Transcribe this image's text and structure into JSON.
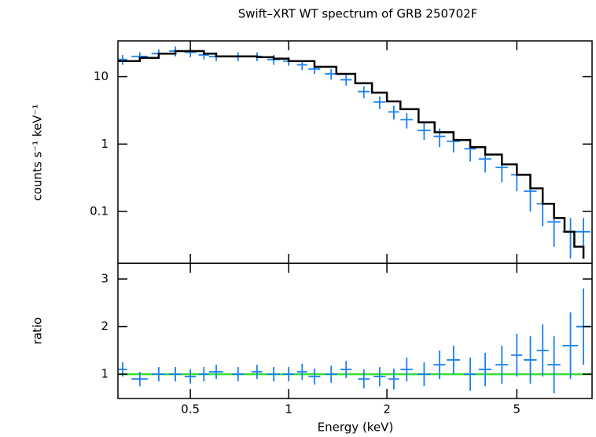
{
  "chart_data": [
    {
      "type": "errorbar",
      "title": "Swift–XRT WT spectrum of GRB 250702F",
      "ylabel": "counts s⁻¹ keV⁻¹",
      "xscale": "log",
      "yscale": "log",
      "xlim": [
        0.3,
        8.5
      ],
      "ylim": [
        0.017,
        34
      ],
      "yticks": [
        0.1,
        1,
        10
      ],
      "color": "#1a80f0",
      "x": [
        0.31,
        0.35,
        0.4,
        0.45,
        0.5,
        0.55,
        0.6,
        0.7,
        0.8,
        0.9,
        1.0,
        1.1,
        1.2,
        1.35,
        1.5,
        1.7,
        1.9,
        2.1,
        2.3,
        2.6,
        2.9,
        3.2,
        3.6,
        4.0,
        4.5,
        5.0,
        5.5,
        6.0,
        6.5,
        7.3,
        8.0
      ],
      "xerr": [
        0.01,
        0.02,
        0.02,
        0.02,
        0.02,
        0.02,
        0.03,
        0.03,
        0.03,
        0.04,
        0.04,
        0.04,
        0.05,
        0.06,
        0.06,
        0.07,
        0.08,
        0.08,
        0.1,
        0.12,
        0.12,
        0.15,
        0.15,
        0.18,
        0.2,
        0.2,
        0.25,
        0.25,
        0.3,
        0.4,
        0.4
      ],
      "values": [
        18,
        20,
        22,
        24,
        23,
        21,
        20,
        20,
        20,
        18,
        17,
        15,
        13,
        11,
        9,
        6,
        4.2,
        3,
        2.3,
        1.6,
        1.3,
        1.1,
        0.85,
        0.6,
        0.45,
        0.35,
        0.2,
        0.13,
        0.07,
        0.05,
        0.05
      ],
      "errors": [
        3,
        3,
        3.5,
        4,
        3.5,
        3,
        3,
        3,
        3,
        3,
        2.5,
        2.5,
        2,
        2,
        1.6,
        1.2,
        0.9,
        0.7,
        0.6,
        0.45,
        0.4,
        0.35,
        0.3,
        0.22,
        0.18,
        0.15,
        0.1,
        0.07,
        0.04,
        0.03,
        0.03
      ],
      "model": {
        "color": "#000000",
        "x": [
          0.3,
          0.35,
          0.4,
          0.45,
          0.5,
          0.55,
          0.6,
          0.7,
          0.8,
          0.9,
          1.0,
          1.2,
          1.4,
          1.6,
          1.8,
          2.0,
          2.2,
          2.5,
          2.8,
          3.2,
          3.6,
          4.0,
          4.5,
          5.0,
          5.5,
          6.0,
          6.5,
          7.0,
          7.5,
          8.0
        ],
        "values": [
          17,
          19,
          22,
          24,
          24,
          22,
          20,
          20,
          19.5,
          18.5,
          17,
          14,
          11,
          8,
          5.8,
          4.3,
          3.3,
          2.1,
          1.5,
          1.15,
          0.9,
          0.7,
          0.5,
          0.35,
          0.22,
          0.13,
          0.08,
          0.05,
          0.03,
          0.02
        ]
      }
    },
    {
      "type": "errorbar",
      "ylabel": "ratio",
      "xlabel": "Energy (keV)",
      "xscale": "log",
      "yscale": "linear",
      "xlim": [
        0.3,
        8.5
      ],
      "ylim": [
        0.49,
        3.33
      ],
      "xticks": [
        0.5,
        1,
        2,
        5
      ],
      "yticks": [
        1,
        2,
        3
      ],
      "color": "#1a80f0",
      "ref_line": 1,
      "ref_color": "#33e033",
      "x": [
        0.31,
        0.35,
        0.4,
        0.45,
        0.5,
        0.55,
        0.6,
        0.7,
        0.8,
        0.9,
        1.0,
        1.1,
        1.2,
        1.35,
        1.5,
        1.7,
        1.9,
        2.1,
        2.3,
        2.6,
        2.9,
        3.2,
        3.6,
        4.0,
        4.5,
        5.0,
        5.5,
        6.0,
        6.5,
        7.3,
        8.0
      ],
      "xerr": [
        0.01,
        0.02,
        0.02,
        0.02,
        0.02,
        0.02,
        0.03,
        0.03,
        0.03,
        0.04,
        0.04,
        0.04,
        0.05,
        0.06,
        0.06,
        0.07,
        0.08,
        0.08,
        0.1,
        0.12,
        0.12,
        0.15,
        0.15,
        0.18,
        0.2,
        0.2,
        0.25,
        0.25,
        0.3,
        0.4,
        0.4
      ],
      "values": [
        1.1,
        0.9,
        1.0,
        1.0,
        0.95,
        1.0,
        1.05,
        1.0,
        1.05,
        1.0,
        1.0,
        1.05,
        0.95,
        1.0,
        1.1,
        0.9,
        0.95,
        0.9,
        1.1,
        1.0,
        1.2,
        1.3,
        1.0,
        1.1,
        1.2,
        1.4,
        1.3,
        1.5,
        1.2,
        1.6,
        2.0
      ],
      "errors": [
        0.15,
        0.15,
        0.15,
        0.15,
        0.15,
        0.15,
        0.15,
        0.15,
        0.15,
        0.15,
        0.15,
        0.17,
        0.17,
        0.18,
        0.18,
        0.2,
        0.2,
        0.22,
        0.25,
        0.25,
        0.3,
        0.3,
        0.35,
        0.35,
        0.4,
        0.45,
        0.5,
        0.55,
        0.6,
        0.7,
        0.8
      ]
    }
  ]
}
